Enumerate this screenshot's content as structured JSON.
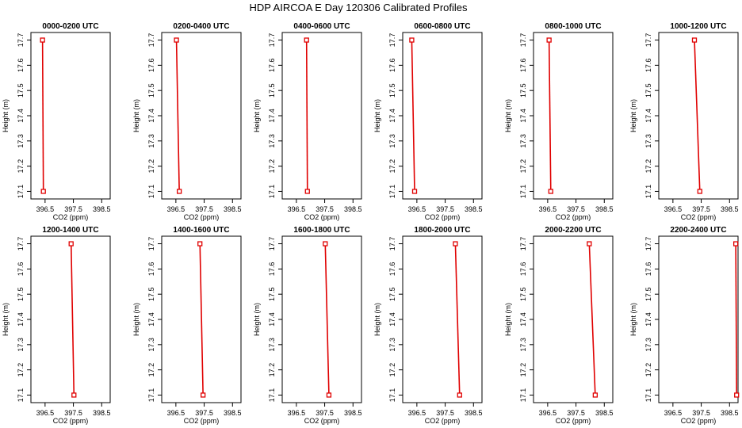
{
  "title": "HDP AIRCOA E  Day 120306  Calibrated Profiles",
  "colors": {
    "series": "#e00000",
    "axis": "#000000"
  },
  "chart_data": [
    {
      "type": "line",
      "title": "0000-0200 UTC",
      "xlabel": "CO2 (ppm)",
      "ylabel": "Height (m)",
      "xlim": [
        396.0,
        398.8
      ],
      "ylim": [
        17.07,
        17.73
      ],
      "xticks": [
        "396.5",
        "397.5",
        "398.5"
      ],
      "yticks": [
        "17.1",
        "17.2",
        "17.3",
        "17.4",
        "17.5",
        "17.6",
        "17.7"
      ],
      "x": [
        396.41,
        396.44
      ],
      "y": [
        17.7,
        17.1
      ]
    },
    {
      "type": "line",
      "title": "0200-0400 UTC",
      "xlabel": "CO2 (ppm)",
      "ylabel": "Height (m)",
      "xlim": [
        396.0,
        398.8
      ],
      "ylim": [
        17.07,
        17.73
      ],
      "xticks": [
        "396.5",
        "397.5",
        "398.5"
      ],
      "yticks": [
        "17.1",
        "17.2",
        "17.3",
        "17.4",
        "17.5",
        "17.6",
        "17.7"
      ],
      "x": [
        396.52,
        396.62
      ],
      "y": [
        17.7,
        17.1
      ]
    },
    {
      "type": "line",
      "title": "0400-0600 UTC",
      "xlabel": "CO2 (ppm)",
      "ylabel": "Height (m)",
      "xlim": [
        396.0,
        398.8
      ],
      "ylim": [
        17.07,
        17.73
      ],
      "xticks": [
        "396.5",
        "397.5",
        "398.5"
      ],
      "yticks": [
        "17.1",
        "17.2",
        "17.3",
        "17.4",
        "17.5",
        "17.6",
        "17.7"
      ],
      "x": [
        396.86,
        396.89
      ],
      "y": [
        17.7,
        17.1
      ]
    },
    {
      "type": "line",
      "title": "0600-0800 UTC",
      "xlabel": "CO2 (ppm)",
      "ylabel": "Height (m)",
      "xlim": [
        396.0,
        398.8
      ],
      "ylim": [
        17.07,
        17.73
      ],
      "xticks": [
        "396.5",
        "397.5",
        "398.5"
      ],
      "yticks": [
        "17.1",
        "17.2",
        "17.3",
        "17.4",
        "17.5",
        "17.6",
        "17.7"
      ],
      "x": [
        396.32,
        396.42
      ],
      "y": [
        17.7,
        17.1
      ]
    },
    {
      "type": "line",
      "title": "0800-1000 UTC",
      "xlabel": "CO2 (ppm)",
      "ylabel": "Height (m)",
      "xlim": [
        396.0,
        398.8
      ],
      "ylim": [
        17.07,
        17.73
      ],
      "xticks": [
        "396.5",
        "397.5",
        "398.5"
      ],
      "yticks": [
        "17.1",
        "17.2",
        "17.3",
        "17.4",
        "17.5",
        "17.6",
        "17.7"
      ],
      "x": [
        396.55,
        396.61
      ],
      "y": [
        17.7,
        17.1
      ]
    },
    {
      "type": "line",
      "title": "1000-1200 UTC",
      "xlabel": "CO2 (ppm)",
      "ylabel": "Height (m)",
      "xlim": [
        396.0,
        398.8
      ],
      "ylim": [
        17.07,
        17.73
      ],
      "xticks": [
        "396.5",
        "397.5",
        "398.5"
      ],
      "yticks": [
        "17.1",
        "17.2",
        "17.3",
        "17.4",
        "17.5",
        "17.6",
        "17.7"
      ],
      "x": [
        397.26,
        397.45
      ],
      "y": [
        17.7,
        17.1
      ]
    },
    {
      "type": "line",
      "title": "1200-1400 UTC",
      "xlabel": "CO2 (ppm)",
      "ylabel": "Height (m)",
      "xlim": [
        396.0,
        398.8
      ],
      "ylim": [
        17.07,
        17.73
      ],
      "xticks": [
        "396.5",
        "397.5",
        "398.5"
      ],
      "yticks": [
        "17.1",
        "17.2",
        "17.3",
        "17.4",
        "17.5",
        "17.6",
        "17.7"
      ],
      "x": [
        397.42,
        397.52
      ],
      "y": [
        17.7,
        17.1
      ]
    },
    {
      "type": "line",
      "title": "1400-1600 UTC",
      "xlabel": "CO2 (ppm)",
      "ylabel": "Height (m)",
      "xlim": [
        396.0,
        398.8
      ],
      "ylim": [
        17.07,
        17.73
      ],
      "xticks": [
        "396.5",
        "397.5",
        "398.5"
      ],
      "yticks": [
        "17.1",
        "17.2",
        "17.3",
        "17.4",
        "17.5",
        "17.6",
        "17.7"
      ],
      "x": [
        397.35,
        397.46
      ],
      "y": [
        17.7,
        17.1
      ]
    },
    {
      "type": "line",
      "title": "1600-1800 UTC",
      "xlabel": "CO2 (ppm)",
      "ylabel": "Height (m)",
      "xlim": [
        396.0,
        398.8
      ],
      "ylim": [
        17.07,
        17.73
      ],
      "xticks": [
        "396.5",
        "397.5",
        "398.5"
      ],
      "yticks": [
        "17.1",
        "17.2",
        "17.3",
        "17.4",
        "17.5",
        "17.6",
        "17.7"
      ],
      "x": [
        397.52,
        397.65
      ],
      "y": [
        17.7,
        17.1
      ]
    },
    {
      "type": "line",
      "title": "1800-2000 UTC",
      "xlabel": "CO2 (ppm)",
      "ylabel": "Height (m)",
      "xlim": [
        396.0,
        398.8
      ],
      "ylim": [
        17.07,
        17.73
      ],
      "xticks": [
        "396.5",
        "397.5",
        "398.5"
      ],
      "yticks": [
        "17.1",
        "17.2",
        "17.3",
        "17.4",
        "17.5",
        "17.6",
        "17.7"
      ],
      "x": [
        397.86,
        398.01
      ],
      "y": [
        17.7,
        17.1
      ]
    },
    {
      "type": "line",
      "title": "2000-2200 UTC",
      "xlabel": "CO2 (ppm)",
      "ylabel": "Height (m)",
      "xlim": [
        396.0,
        398.8
      ],
      "ylim": [
        17.07,
        17.73
      ],
      "xticks": [
        "396.5",
        "397.5",
        "398.5"
      ],
      "yticks": [
        "17.1",
        "17.2",
        "17.3",
        "17.4",
        "17.5",
        "17.6",
        "17.7"
      ],
      "x": [
        397.97,
        398.18
      ],
      "y": [
        17.7,
        17.1
      ]
    },
    {
      "type": "line",
      "title": "2200-2400 UTC",
      "xlabel": "CO2 (ppm)",
      "ylabel": "Height (m)",
      "xlim": [
        396.0,
        398.8
      ],
      "ylim": [
        17.07,
        17.73
      ],
      "xticks": [
        "396.5",
        "397.5",
        "398.5"
      ],
      "yticks": [
        "17.1",
        "17.2",
        "17.3",
        "17.4",
        "17.5",
        "17.6",
        "17.7"
      ],
      "x": [
        398.72,
        398.75
      ],
      "y": [
        17.7,
        17.1
      ]
    }
  ]
}
